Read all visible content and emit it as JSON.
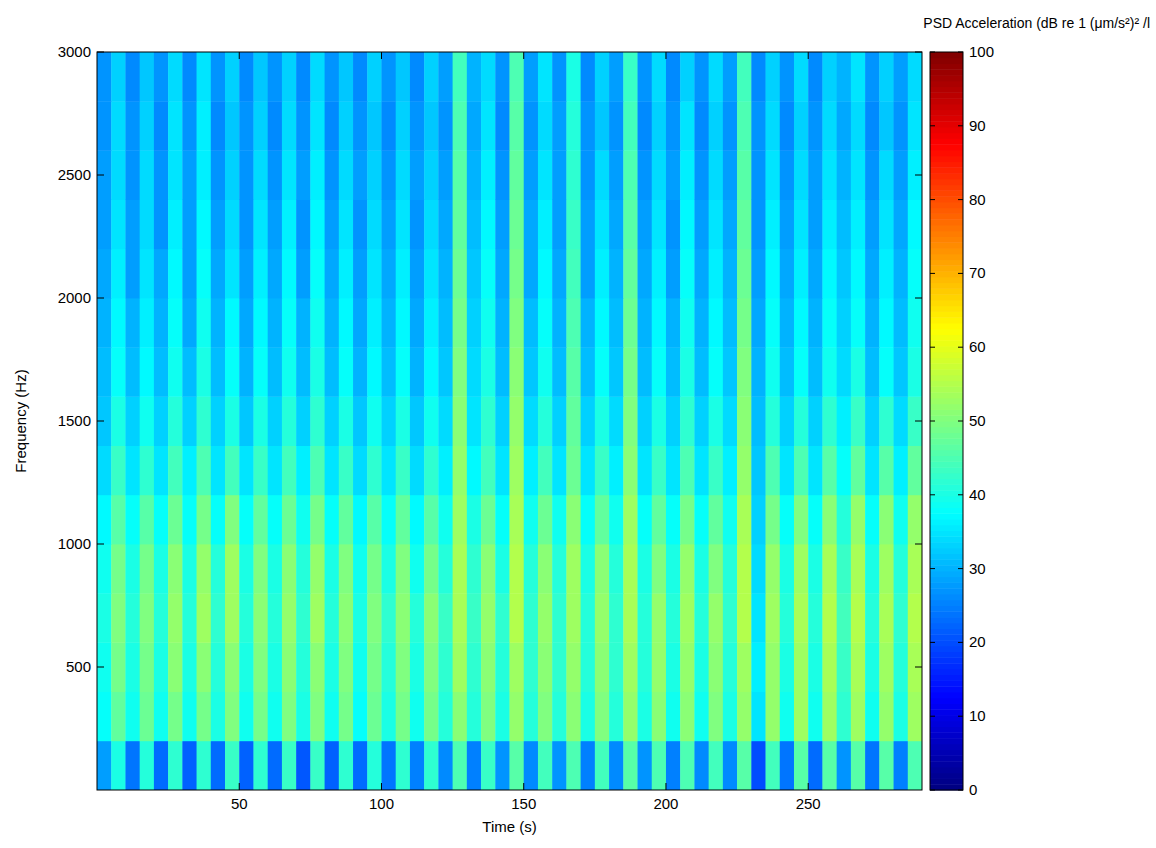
{
  "chart_data": {
    "type": "heatmap",
    "x_label": "Time (s)",
    "y_label": "Frequency (Hz)",
    "colorbar_label": "PSD Acceleration (dB re 1 (μm/s²)² /l",
    "xlim": [
      0,
      290
    ],
    "ylim": [
      0,
      3000
    ],
    "xticks": [
      50,
      100,
      150,
      200,
      250
    ],
    "yticks": [
      500,
      1000,
      1500,
      2000,
      2500,
      3000
    ],
    "colorbar_range": [
      0,
      100
    ],
    "colorbar_ticks": [
      0,
      10,
      20,
      30,
      40,
      50,
      60,
      70,
      80,
      90,
      100
    ],
    "x": [
      2.5,
      7.5,
      12.5,
      17.5,
      22.5,
      27.5,
      32.5,
      37.5,
      42.5,
      47.5,
      52.5,
      57.5,
      62.5,
      67.5,
      72.5,
      77.5,
      82.5,
      87.5,
      92.5,
      97.5,
      102.5,
      107.5,
      112.5,
      117.5,
      122.5,
      127.5,
      132.5,
      137.5,
      142.5,
      147.5,
      152.5,
      157.5,
      162.5,
      167.5,
      172.5,
      177.5,
      182.5,
      187.5,
      192.5,
      197.5,
      202.5,
      207.5,
      212.5,
      217.5,
      222.5,
      227.5,
      232.5,
      237.5,
      242.5,
      247.5,
      252.5,
      257.5,
      262.5,
      267.5,
      272.5,
      277.5,
      282.5,
      287.5
    ],
    "y": [
      100,
      300,
      500,
      700,
      900,
      1100,
      1300,
      1500,
      1700,
      1900,
      2100,
      2300,
      2500,
      2700,
      2900
    ],
    "values": [
      [
        28,
        40,
        24,
        41,
        23,
        42,
        22,
        42,
        23,
        43,
        22,
        42,
        23,
        43,
        21,
        43,
        22,
        42,
        23,
        41,
        24,
        42,
        25,
        42,
        26,
        45,
        25,
        43,
        27,
        46,
        26,
        44,
        27,
        45,
        25,
        44,
        26,
        46,
        27,
        45,
        25,
        45,
        26,
        44,
        26,
        46,
        20,
        44,
        24,
        46,
        23,
        46,
        27,
        46,
        24,
        46,
        25,
        45
      ],
      [
        38,
        47,
        39,
        48,
        39,
        49,
        39,
        49,
        40,
        50,
        39,
        49,
        39,
        50,
        40,
        50,
        39,
        49,
        38,
        48,
        40,
        49,
        39,
        49,
        41,
        51,
        41,
        50,
        40,
        52,
        41,
        50,
        41,
        51,
        40,
        50,
        41,
        52,
        40,
        51,
        39,
        51,
        39,
        50,
        40,
        52,
        35,
        52,
        39,
        53,
        39,
        53,
        42,
        53,
        39,
        52,
        40,
        53
      ],
      [
        39,
        49,
        40,
        49,
        40,
        51,
        40,
        51,
        41,
        51,
        40,
        50,
        40,
        51,
        41,
        51,
        40,
        50,
        39,
        49,
        41,
        50,
        40,
        50,
        42,
        53,
        42,
        51,
        41,
        53,
        42,
        51,
        42,
        52,
        41,
        51,
        42,
        53,
        41,
        52,
        40,
        52,
        40,
        51,
        41,
        53,
        36,
        52,
        40,
        53,
        40,
        54,
        43,
        54,
        40,
        53,
        41,
        54
      ],
      [
        40,
        50,
        41,
        50,
        41,
        52,
        41,
        53,
        42,
        53,
        41,
        51,
        41,
        52,
        42,
        53,
        41,
        51,
        40,
        50,
        42,
        51,
        41,
        51,
        43,
        54,
        43,
        52,
        42,
        55,
        42,
        52,
        42,
        53,
        41,
        52,
        42,
        54,
        41,
        52,
        41,
        53,
        41,
        52,
        42,
        55,
        35,
        53,
        41,
        54,
        41,
        55,
        44,
        55,
        41,
        54,
        42,
        55
      ],
      [
        39,
        49,
        40,
        49,
        40,
        51,
        40,
        52,
        41,
        53,
        40,
        50,
        40,
        51,
        41,
        52,
        40,
        50,
        39,
        49,
        40,
        50,
        39,
        49,
        41,
        54,
        42,
        51,
        40,
        55,
        41,
        51,
        41,
        53,
        40,
        51,
        41,
        54,
        40,
        50,
        40,
        52,
        40,
        50,
        41,
        55,
        34,
        52,
        40,
        53,
        40,
        54,
        43,
        54,
        40,
        53,
        41,
        54
      ],
      [
        37,
        46,
        38,
        46,
        38,
        48,
        38,
        49,
        38,
        50,
        38,
        47,
        38,
        48,
        39,
        49,
        38,
        47,
        37,
        46,
        38,
        47,
        37,
        46,
        39,
        53,
        40,
        48,
        38,
        54,
        39,
        48,
        39,
        51,
        38,
        47,
        39,
        53,
        38,
        47,
        38,
        49,
        38,
        47,
        39,
        54,
        33,
        49,
        38,
        50,
        38,
        51,
        41,
        52,
        38,
        51,
        39,
        52
      ],
      [
        34,
        43,
        35,
        42,
        35,
        44,
        36,
        45,
        35,
        44,
        35,
        43,
        35,
        44,
        36,
        45,
        35,
        43,
        34,
        42,
        35,
        43,
        34,
        42,
        36,
        52,
        37,
        44,
        35,
        53,
        36,
        44,
        35,
        48,
        35,
        43,
        36,
        51,
        35,
        43,
        35,
        45,
        35,
        43,
        36,
        52,
        32,
        45,
        35,
        45,
        35,
        46,
        38,
        47,
        35,
        46,
        36,
        47
      ],
      [
        32,
        40,
        33,
        39,
        33,
        41,
        33,
        42,
        33,
        40,
        32,
        40,
        33,
        41,
        33,
        42,
        33,
        40,
        32,
        39,
        33,
        40,
        32,
        39,
        34,
        51,
        35,
        42,
        33,
        52,
        34,
        41,
        33,
        47,
        33,
        40,
        34,
        50,
        33,
        40,
        33,
        42,
        33,
        40,
        34,
        51,
        31,
        41,
        33,
        41,
        33,
        42,
        36,
        43,
        33,
        42,
        34,
        43
      ],
      [
        31,
        38,
        31,
        37,
        31,
        39,
        31,
        40,
        31,
        38,
        30,
        38,
        31,
        39,
        31,
        40,
        31,
        38,
        30,
        37,
        31,
        38,
        30,
        37,
        32,
        50,
        34,
        40,
        31,
        51,
        32,
        39,
        31,
        46,
        31,
        38,
        32,
        49,
        31,
        38,
        31,
        40,
        31,
        38,
        32,
        50,
        30,
        39,
        31,
        38,
        31,
        39,
        34,
        40,
        31,
        38,
        32,
        40
      ],
      [
        30,
        37,
        30,
        36,
        30,
        38,
        29,
        39,
        30,
        37,
        29,
        37,
        30,
        38,
        30,
        39,
        30,
        37,
        29,
        36,
        30,
        37,
        29,
        36,
        31,
        49,
        33,
        39,
        30,
        50,
        31,
        38,
        30,
        45,
        30,
        37,
        31,
        48,
        30,
        37,
        30,
        39,
        30,
        37,
        31,
        49,
        29,
        38,
        30,
        37,
        30,
        38,
        33,
        38,
        30,
        37,
        31,
        39
      ],
      [
        29,
        36,
        28,
        35,
        29,
        37,
        28,
        38,
        29,
        35,
        28,
        36,
        29,
        37,
        28,
        38,
        29,
        36,
        28,
        35,
        29,
        36,
        28,
        35,
        30,
        48,
        32,
        38,
        29,
        49,
        29,
        37,
        29,
        44,
        28,
        36,
        30,
        47,
        29,
        36,
        28,
        38,
        29,
        36,
        30,
        48,
        28,
        37,
        29,
        36,
        29,
        37,
        32,
        37,
        29,
        36,
        30,
        38
      ],
      [
        28,
        35,
        28,
        34,
        27,
        36,
        28,
        37,
        28,
        34,
        27,
        35,
        28,
        36,
        27,
        37,
        28,
        35,
        27,
        34,
        28,
        35,
        27,
        34,
        29,
        47,
        31,
        37,
        28,
        48,
        29,
        36,
        28,
        43,
        28,
        35,
        29,
        46,
        28,
        35,
        27,
        37,
        28,
        35,
        29,
        47,
        27,
        36,
        28,
        35,
        28,
        36,
        31,
        36,
        28,
        35,
        29,
        37
      ],
      [
        28,
        34,
        27,
        34,
        27,
        35,
        28,
        36,
        27,
        33,
        27,
        34,
        27,
        35,
        28,
        36,
        27,
        34,
        28,
        33,
        27,
        34,
        28,
        33,
        28,
        46,
        30,
        36,
        27,
        47,
        28,
        35,
        28,
        42,
        27,
        34,
        28,
        45,
        27,
        34,
        28,
        36,
        27,
        34,
        28,
        46,
        27,
        35,
        27,
        34,
        28,
        35,
        30,
        35,
        27,
        34,
        28,
        36
      ],
      [
        27,
        34,
        27,
        33,
        26,
        35,
        27,
        36,
        26,
        32,
        27,
        33,
        26,
        34,
        27,
        35,
        26,
        33,
        27,
        32,
        26,
        33,
        27,
        32,
        27,
        45,
        29,
        35,
        26,
        46,
        27,
        34,
        28,
        41,
        27,
        32,
        27,
        44,
        26,
        33,
        27,
        35,
        26,
        33,
        27,
        45,
        27,
        34,
        26,
        33,
        27,
        34,
        29,
        34,
        26,
        32,
        27,
        35
      ],
      [
        27,
        33,
        26,
        32,
        27,
        34,
        26,
        35,
        27,
        33,
        26,
        32,
        27,
        33,
        26,
        34,
        27,
        32,
        26,
        33,
        27,
        32,
        26,
        33,
        28,
        44,
        30,
        34,
        27,
        45,
        28,
        35,
        27,
        40,
        26,
        33,
        28,
        43,
        27,
        34,
        26,
        33,
        27,
        34,
        28,
        44,
        26,
        33,
        27,
        34,
        26,
        33,
        30,
        35,
        27,
        33,
        28,
        34
      ]
    ]
  }
}
